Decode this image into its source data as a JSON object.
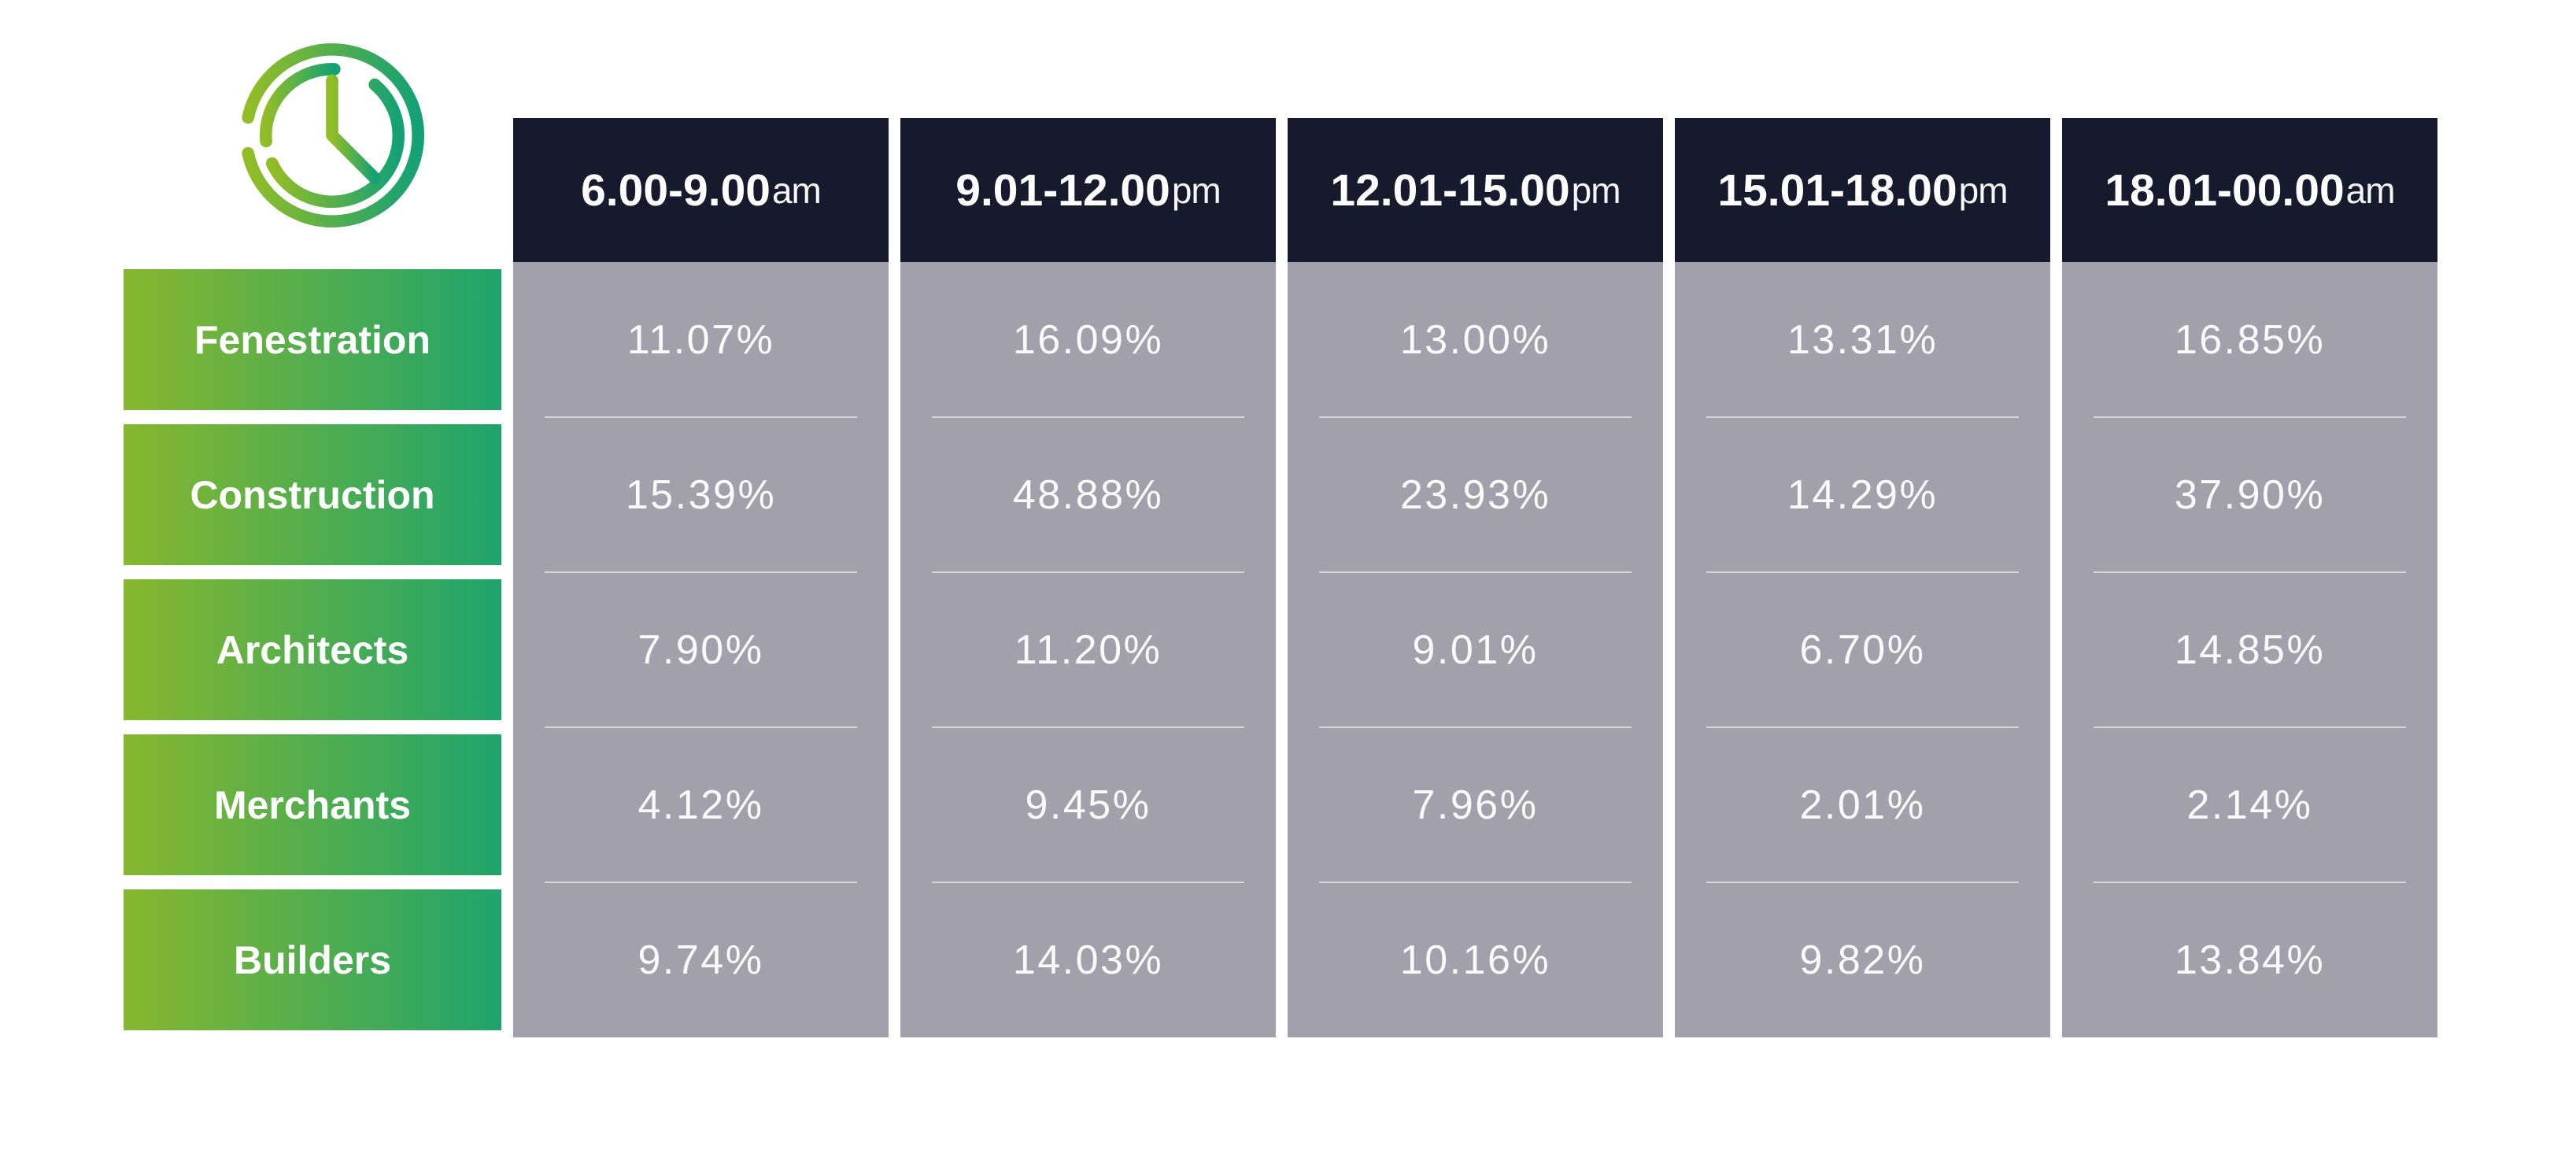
{
  "colors": {
    "header_bg": "#151a2c",
    "column_bg": "#a2a1ab",
    "gradient_start": "#87b72f",
    "gradient_end": "#1fa46c",
    "icon_gradient_start": "#93bd26",
    "icon_gradient_end": "#14a175",
    "text_white": "#ffffff",
    "separator": "rgba(255,255,255,0.55)"
  },
  "icon": {
    "name": "clock-icon"
  },
  "chart_data": {
    "type": "table",
    "title": "",
    "columns": [
      {
        "label": "6.00-9.00",
        "suffix": "am"
      },
      {
        "label": "9.01-12.00",
        "suffix": "pm"
      },
      {
        "label": "12.01-15.00",
        "suffix": "pm"
      },
      {
        "label": "15.01-18.00",
        "suffix": "pm"
      },
      {
        "label": "18.01-00.00",
        "suffix": "am"
      }
    ],
    "rows": [
      {
        "label": "Fenestration",
        "values": [
          "11.07%",
          "16.09%",
          "13.00%",
          "13.31%",
          "16.85%"
        ]
      },
      {
        "label": "Construction",
        "values": [
          "15.39%",
          "48.88%",
          "23.93%",
          "14.29%",
          "37.90%"
        ]
      },
      {
        "label": "Architects",
        "values": [
          "7.90%",
          "11.20%",
          "9.01%",
          "6.70%",
          "14.85%"
        ]
      },
      {
        "label": "Merchants",
        "values": [
          "4.12%",
          "9.45%",
          "7.96%",
          "2.01%",
          "2.14%"
        ]
      },
      {
        "label": "Builders",
        "values": [
          "9.74%",
          "14.03%",
          "10.16%",
          "9.82%",
          "13.84%"
        ]
      }
    ]
  }
}
